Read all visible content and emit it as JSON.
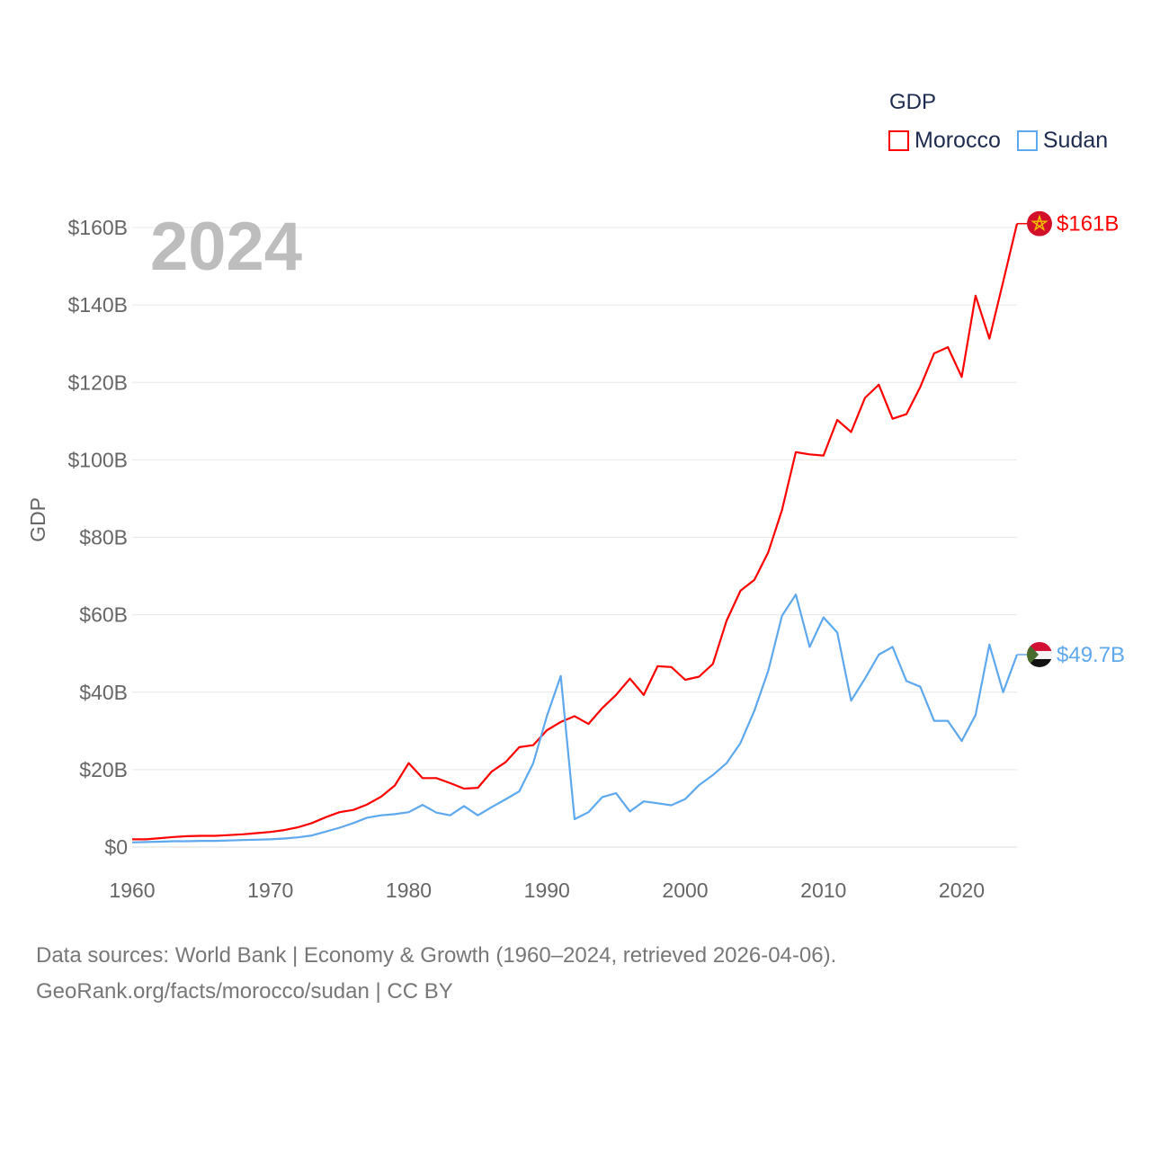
{
  "chart_data": {
    "type": "line",
    "title": "GDP",
    "year_label": "2024",
    "ylabel": "GDP",
    "xlabel": "",
    "xlim": [
      1960,
      2024
    ],
    "ylim": [
      0,
      160
    ],
    "x_ticks": [
      1960,
      1970,
      1980,
      1990,
      2000,
      2010,
      2020
    ],
    "y_ticks": [
      0,
      20,
      40,
      60,
      80,
      100,
      120,
      140,
      160
    ],
    "y_tick_labels": [
      "$0",
      "$20B",
      "$40B",
      "$60B",
      "$80B",
      "$100B",
      "$120B",
      "$140B",
      "$160B"
    ],
    "grid": true,
    "legend_position": "top-right",
    "units": "USD billions",
    "series": [
      {
        "name": "Morocco",
        "color": "#ff0000",
        "end_label": "$161B",
        "flag": "morocco-flag",
        "values": [
          2.0,
          2.0,
          2.3,
          2.6,
          2.8,
          2.9,
          2.9,
          3.1,
          3.3,
          3.6,
          3.9,
          4.4,
          5.1,
          6.2,
          7.7,
          9.0,
          9.6,
          11.0,
          13.0,
          15.9,
          21.7,
          17.8,
          17.8,
          16.5,
          15.1,
          15.3,
          19.5,
          21.9,
          25.8,
          26.3,
          30.2,
          32.3,
          33.8,
          31.8,
          35.9,
          39.3,
          43.5,
          39.3,
          46.7,
          46.5,
          43.2,
          44.0,
          47.3,
          58.5,
          66.2,
          69.0,
          76.1,
          87.0,
          102.0,
          101.4,
          101.1,
          110.3,
          107.2,
          116.0,
          119.4,
          110.6,
          111.8,
          118.8,
          127.5,
          129.1,
          121.4,
          142.4,
          131.3,
          146.0,
          161.0
        ]
      },
      {
        "name": "Sudan",
        "color": "#5ea8ee",
        "end_label": "$49.7B",
        "flag": "sudan-flag",
        "values": [
          1.2,
          1.3,
          1.4,
          1.5,
          1.5,
          1.6,
          1.6,
          1.7,
          1.8,
          1.9,
          2.0,
          2.2,
          2.5,
          3.0,
          4.0,
          5.0,
          6.2,
          7.6,
          8.2,
          8.5,
          9.0,
          10.9,
          8.9,
          8.2,
          10.6,
          8.2,
          10.3,
          12.3,
          14.4,
          21.6,
          33.9,
          44.2,
          7.2,
          9.0,
          12.9,
          13.9,
          9.2,
          11.8,
          11.3,
          10.8,
          12.4,
          16.0,
          18.6,
          21.7,
          26.9,
          35.2,
          45.5,
          59.7,
          65.2,
          51.7,
          59.3,
          55.4,
          37.8,
          43.5,
          49.7,
          51.7,
          42.9,
          41.4,
          32.6,
          32.6,
          27.4,
          34.1,
          52.3,
          40.0,
          49.7
        ]
      }
    ]
  },
  "footer": {
    "line1": "Data sources: World Bank | Economy & Growth (1960–2024, retrieved 2026-04-06).",
    "line2": "GeoRank.org/facts/morocco/sudan | CC BY"
  }
}
